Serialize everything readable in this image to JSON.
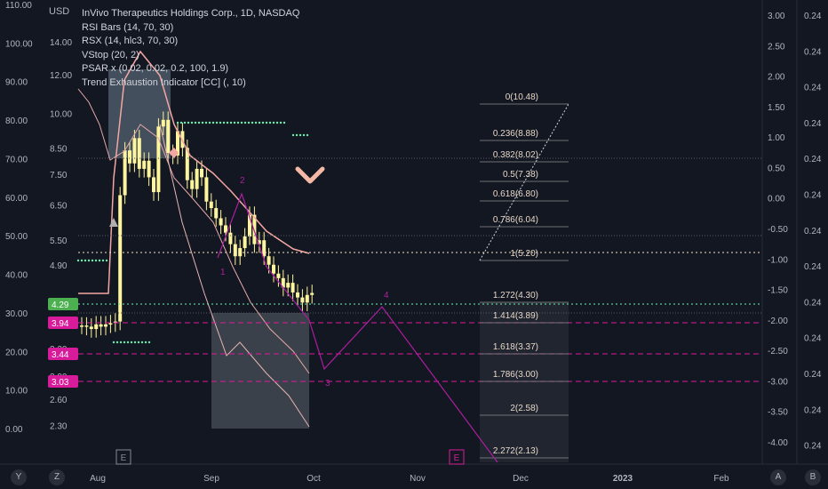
{
  "chart_data": {
    "type": "candlestick",
    "title": "InVivo Therapeutics Holdings Corp., 1D, NASDAQ",
    "indicators": [
      "RSI Bars (14, 70, 30)",
      "RSX (14, hlc3, 70, 30)",
      "VStop (20, 2)",
      "PSAR x (0.02, 0.02, 0.2, 100, 1.9)",
      "Trend Exhaustion Indicator [CC] (, 10)"
    ],
    "currency": "USD",
    "scale": "log",
    "price_axis_ticks": [
      "14.00",
      "12.00",
      "10.00",
      "8.50",
      "7.50",
      "6.50",
      "5.50",
      "4.90",
      "3.70",
      "3.30",
      "2.90",
      "2.60",
      "2.30"
    ],
    "oscillator_axis_ticks": [
      "110.00",
      "100.00",
      "90.00",
      "80.00",
      "70.00",
      "60.00",
      "50.00",
      "40.00",
      "30.00",
      "20.00",
      "10.00",
      "0.00"
    ],
    "right_axis_ticks": [
      "3.00",
      "2.50",
      "2.00",
      "1.50",
      "1.00",
      "0.50",
      "0.00",
      "-0.50",
      "-1.00",
      "-1.50",
      "-2.00",
      "-2.50",
      "-3.00",
      "-3.50",
      "-4.00"
    ],
    "far_right_ticks": [
      "0.24",
      "0.24",
      "0.24",
      "0.24",
      "0.24",
      "0.24",
      "0.24",
      "0.24",
      "0.24",
      "0.24",
      "0.24",
      "0.24",
      "0.24"
    ],
    "x_axis_ticks": [
      "Aug",
      "Sep",
      "Oct",
      "Nov",
      "Dec",
      "2023",
      "Feb"
    ],
    "price_badges": [
      {
        "value": "4.29",
        "color": "#4caf50"
      },
      {
        "value": "3.94",
        "color": "#d81b9a"
      },
      {
        "value": "3.44",
        "color": "#d81b9a"
      },
      {
        "value": "3.03",
        "color": "#d81b9a"
      }
    ],
    "fib_levels": [
      {
        "label": "0(10.48)"
      },
      {
        "label": "0.236(8.88)"
      },
      {
        "label": "0.382(8.02)"
      },
      {
        "label": "0.5(7.38)"
      },
      {
        "label": "0.618(6.80)"
      },
      {
        "label": "0.786(6.04)"
      },
      {
        "label": "1(5.20)"
      },
      {
        "label": "1.272(4.30)"
      },
      {
        "label": "1.414(3.89)"
      },
      {
        "label": "1.618(3.37)"
      },
      {
        "label": "1.786(3.00)"
      },
      {
        "label": "2(2.58)"
      },
      {
        "label": "2.272(2.13)"
      }
    ],
    "wave_labels": [
      "1",
      "2",
      "3",
      "4"
    ],
    "candles_close": [
      3.68,
      3.66,
      3.62,
      3.7,
      3.66,
      3.7,
      3.72,
      3.75,
      6.8,
      8.4,
      7.9,
      8.9,
      7.7,
      8.0,
      7.4,
      6.9,
      9.4,
      9.7,
      8.3,
      8.2,
      9.2,
      8.5,
      7.3,
      7.0,
      7.7,
      7.4,
      6.6,
      6.4,
      6.1,
      5.9,
      5.7,
      5.4,
      5.1,
      5.3,
      5.6,
      6.2,
      5.4,
      5.5,
      5.1,
      4.9,
      4.7,
      4.6,
      4.4,
      4.5,
      4.3,
      4.2,
      4.1,
      4.25,
      4.29
    ],
    "events": [
      "E",
      "E"
    ],
    "colors": {
      "bull": "#fff59d",
      "bear": "#fff59d",
      "psar": "#69f0ae",
      "vstop": "#f8bbd0",
      "fib": "#e6e6e6",
      "wave": "#ab1fa0",
      "badge_green": "#4caf50",
      "badge_magenta": "#d81b9a",
      "earnings": "#d81b9a"
    }
  },
  "ui": {
    "bottom_left": "Y",
    "bottom_left2": "Z",
    "bottom_right1": "A",
    "bottom_right2": "B",
    "earnings_label": "E"
  }
}
